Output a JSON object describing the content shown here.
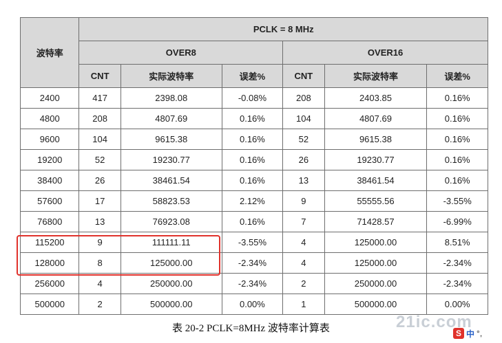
{
  "table": {
    "baud_header": "波特率",
    "pclk_header": "PCLK = 8 MHz",
    "over8_header": "OVER8",
    "over16_header": "OVER16",
    "col_cnt": "CNT",
    "col_actual": "实际波特率",
    "col_error": "误差%",
    "rows": [
      [
        "2400",
        "417",
        "2398.08",
        "-0.08%",
        "208",
        "2403.85",
        "0.16%"
      ],
      [
        "4800",
        "208",
        "4807.69",
        "0.16%",
        "104",
        "4807.69",
        "0.16%"
      ],
      [
        "9600",
        "104",
        "9615.38",
        "0.16%",
        "52",
        "9615.38",
        "0.16%"
      ],
      [
        "19200",
        "52",
        "19230.77",
        "0.16%",
        "26",
        "19230.77",
        "0.16%"
      ],
      [
        "38400",
        "26",
        "38461.54",
        "0.16%",
        "13",
        "38461.54",
        "0.16%"
      ],
      [
        "57600",
        "17",
        "58823.53",
        "2.12%",
        "9",
        "55555.56",
        "-3.55%"
      ],
      [
        "76800",
        "13",
        "76923.08",
        "0.16%",
        "7",
        "71428.57",
        "-6.99%"
      ],
      [
        "115200",
        "9",
        "111111.11",
        "-3.55%",
        "4",
        "125000.00",
        "8.51%"
      ],
      [
        "128000",
        "8",
        "125000.00",
        "-2.34%",
        "4",
        "125000.00",
        "-2.34%"
      ],
      [
        "256000",
        "4",
        "250000.00",
        "-2.34%",
        "2",
        "250000.00",
        "-2.34%"
      ],
      [
        "500000",
        "2",
        "500000.00",
        "0.00%",
        "1",
        "500000.00",
        "0.00%"
      ]
    ]
  },
  "caption": "表  20-2    PCLK=8MHz 波特率计算表",
  "watermark": "21ic.com",
  "ime": {
    "label": "中",
    "extra": "°,"
  },
  "highlight_color": "#e0312b"
}
